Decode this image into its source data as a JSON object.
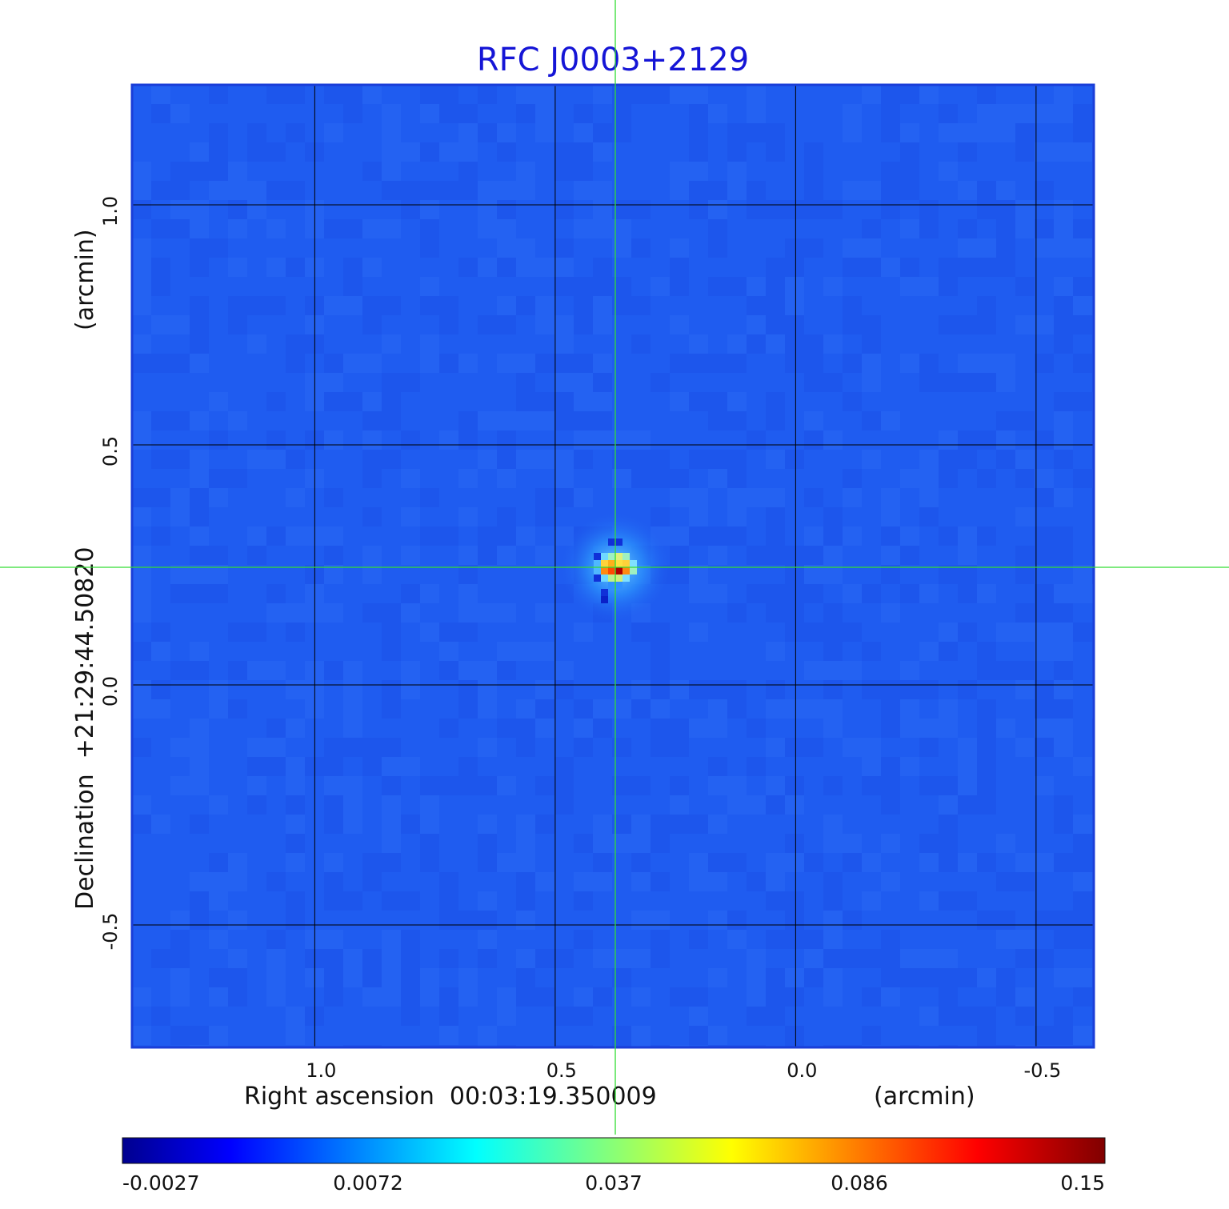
{
  "chart_data": {
    "type": "heatmap",
    "title": "RFC J0003+2129",
    "xlabel": "Right ascension  00:03:19.350009",
    "xunit": "(arcmin)",
    "ylabel": "Declination  +21:29:44.50820",
    "yunit": "(arcmin)",
    "xlim": [
      1.38,
      -0.62
    ],
    "ylim": [
      -0.755,
      1.25
    ],
    "x_ticks": [
      1.0,
      0.5,
      0.0,
      -0.5
    ],
    "x_tick_labels": [
      "1.0",
      "0.5",
      "0.0",
      "-0.5"
    ],
    "y_ticks": [
      1.0,
      0.5,
      0.0,
      -0.5
    ],
    "y_tick_labels": [
      "1.0",
      "0.5",
      "0.0",
      "-0.5"
    ],
    "grid": true,
    "crosshair": {
      "x": 0.375,
      "y": 0.245
    },
    "source_peak": {
      "x": 0.375,
      "y": 0.245,
      "value": 0.15
    },
    "colorbar": {
      "min": -0.0027,
      "max": 0.15,
      "tick_labels": [
        "-0.0027",
        "0.0072",
        "0.037",
        "0.086",
        "0.15"
      ],
      "colormap": "jet"
    },
    "colors": {
      "title": "#1515d6",
      "background_field": "#1f5cf0",
      "crosshair": "#33dd33",
      "grid": "#000000"
    }
  }
}
